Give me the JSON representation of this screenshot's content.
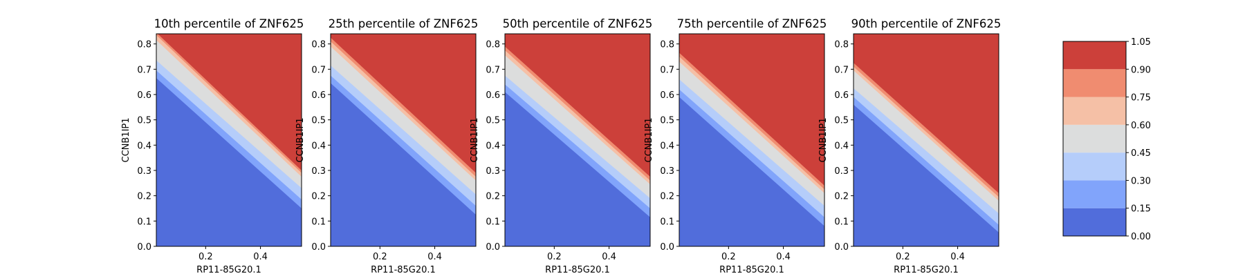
{
  "chart_data": {
    "type": "heatmap",
    "panels": [
      {
        "title": "10th percentile of ZNF625",
        "xlabel": "RP11-85G20.1",
        "ylabel": "CCNB1IP1",
        "xlim": [
          0.02,
          0.55
        ],
        "ylim": [
          0.0,
          0.84
        ],
        "x_ticks": [
          "0.2",
          "0.4"
        ],
        "y_ticks": [
          "0.0",
          "0.1",
          "0.2",
          "0.3",
          "0.4",
          "0.5",
          "0.6",
          "0.7",
          "0.8"
        ],
        "level_line_intercepts_left": [
          0.665,
          0.695,
          0.735,
          0.815,
          0.835,
          0.845
        ],
        "level_line_intercepts_right": [
          0.15,
          0.185,
          0.23,
          0.275,
          0.29,
          0.3
        ]
      },
      {
        "title": "25th percentile of ZNF625",
        "xlabel": "RP11-85G20.1",
        "ylabel": "CCNB1IP1",
        "xlim": [
          0.02,
          0.55
        ],
        "ylim": [
          0.0,
          0.84
        ],
        "x_ticks": [
          "0.2",
          "0.4"
        ],
        "y_ticks": [
          "0.0",
          "0.1",
          "0.2",
          "0.3",
          "0.4",
          "0.5",
          "0.6",
          "0.7",
          "0.8"
        ],
        "level_line_intercepts_left": [
          0.645,
          0.675,
          0.715,
          0.79,
          0.81,
          0.825
        ],
        "level_line_intercepts_right": [
          0.125,
          0.16,
          0.205,
          0.26,
          0.275,
          0.29
        ]
      },
      {
        "title": "50th percentile of ZNF625",
        "xlabel": "RP11-85G20.1",
        "ylabel": "CCNB1IP1",
        "xlim": [
          0.02,
          0.55
        ],
        "ylim": [
          0.0,
          0.84
        ],
        "x_ticks": [
          "0.2",
          "0.4"
        ],
        "y_ticks": [
          "0.0",
          "0.1",
          "0.2",
          "0.3",
          "0.4",
          "0.5",
          "0.6",
          "0.7",
          "0.8"
        ],
        "level_line_intercepts_left": [
          0.61,
          0.64,
          0.675,
          0.755,
          0.775,
          0.79
        ],
        "level_line_intercepts_right": [
          0.115,
          0.15,
          0.19,
          0.245,
          0.26,
          0.275
        ]
      },
      {
        "title": "75th percentile of ZNF625",
        "xlabel": "RP11-85G20.1",
        "ylabel": "CCNB1IP1",
        "xlim": [
          0.02,
          0.55
        ],
        "ylim": [
          0.0,
          0.84
        ],
        "x_ticks": [
          "0.2",
          "0.4"
        ],
        "y_ticks": [
          "0.0",
          "0.1",
          "0.2",
          "0.3",
          "0.4",
          "0.5",
          "0.6",
          "0.7",
          "0.8"
        ],
        "level_line_intercepts_left": [
          0.59,
          0.62,
          0.66,
          0.73,
          0.75,
          0.765
        ],
        "level_line_intercepts_right": [
          0.08,
          0.115,
          0.16,
          0.21,
          0.225,
          0.24
        ]
      },
      {
        "title": "90th percentile of ZNF625",
        "xlabel": "RP11-85G20.1",
        "ylabel": "CCNB1IP1",
        "xlim": [
          0.02,
          0.55
        ],
        "ylim": [
          0.0,
          0.84
        ],
        "x_ticks": [
          "0.2",
          "0.4"
        ],
        "y_ticks": [
          "0.0",
          "0.1",
          "0.2",
          "0.3",
          "0.4",
          "0.5",
          "0.6",
          "0.7",
          "0.8"
        ],
        "level_line_intercepts_left": [
          0.56,
          0.59,
          0.625,
          0.695,
          0.71,
          0.725
        ],
        "level_line_intercepts_right": [
          0.055,
          0.085,
          0.13,
          0.18,
          0.195,
          0.21
        ]
      }
    ],
    "colorbar": {
      "levels": [
        0.0,
        0.15,
        0.3,
        0.45,
        0.6,
        0.75,
        0.9,
        1.05
      ],
      "tick_labels": [
        "0.00",
        "0.15",
        "0.30",
        "0.45",
        "0.60",
        "0.75",
        "0.90",
        "1.05"
      ],
      "colors": [
        "#516ddb",
        "#81a4fb",
        "#b5cdfa",
        "#dcdddd",
        "#f5c0a6",
        "#f08c70",
        "#cc403a"
      ]
    },
    "grid": false
  }
}
